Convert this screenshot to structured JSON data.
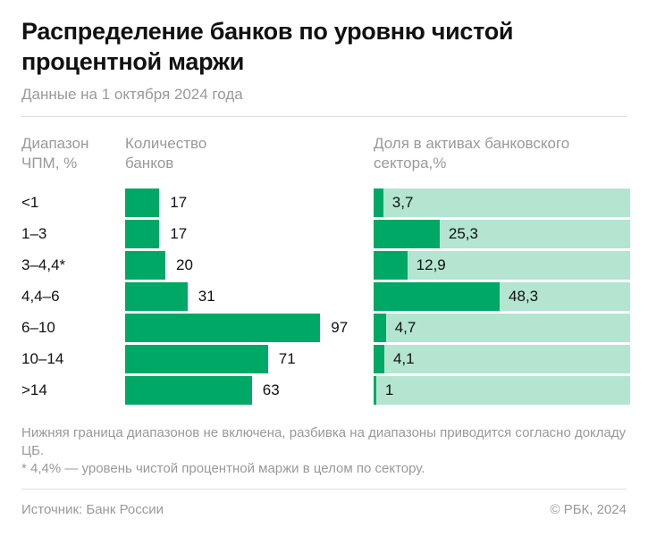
{
  "title": "Распределение банков по уровню чистой процентной маржи",
  "subtitle": "Данные на 1 октября 2024 года",
  "colors": {
    "bar": "#00a865",
    "background_bar": "#b3e5d1"
  },
  "chart_data": [
    {
      "type": "bar",
      "orientation": "horizontal",
      "category_header": "Диапазон ЧПМ, %",
      "title": "Количество банков",
      "categories": [
        "<1",
        "1–3",
        "3–4,4*",
        "4,4–6",
        "6–10",
        "10–14",
        ">14"
      ],
      "values": [
        17,
        17,
        20,
        31,
        97,
        71,
        63
      ],
      "value_labels": [
        "17",
        "17",
        "20",
        "31",
        "97",
        "71",
        "63"
      ]
    },
    {
      "type": "bar",
      "orientation": "horizontal",
      "title": "Доля в активах банковского сектора,%",
      "categories": [
        "<1",
        "1–3",
        "3–4,4*",
        "4,4–6",
        "6–10",
        "10–14",
        ">14"
      ],
      "values": [
        3.7,
        25.3,
        12.9,
        48.3,
        4.7,
        4.1,
        1
      ],
      "value_labels": [
        "3,7",
        "25,3",
        "12,9",
        "48,3",
        "4,7",
        "4,1",
        "1"
      ],
      "xlim": [
        0,
        100
      ]
    }
  ],
  "notes": [
    "Нижняя граница диапазонов не включена, разбивка на диапазоны приводится согласно докладу ЦБ.",
    "* 4,4% — уровень чистой процентной маржи в целом по сектору."
  ],
  "source": "Источник: Банк России",
  "copyright": "© РБК, 2024"
}
